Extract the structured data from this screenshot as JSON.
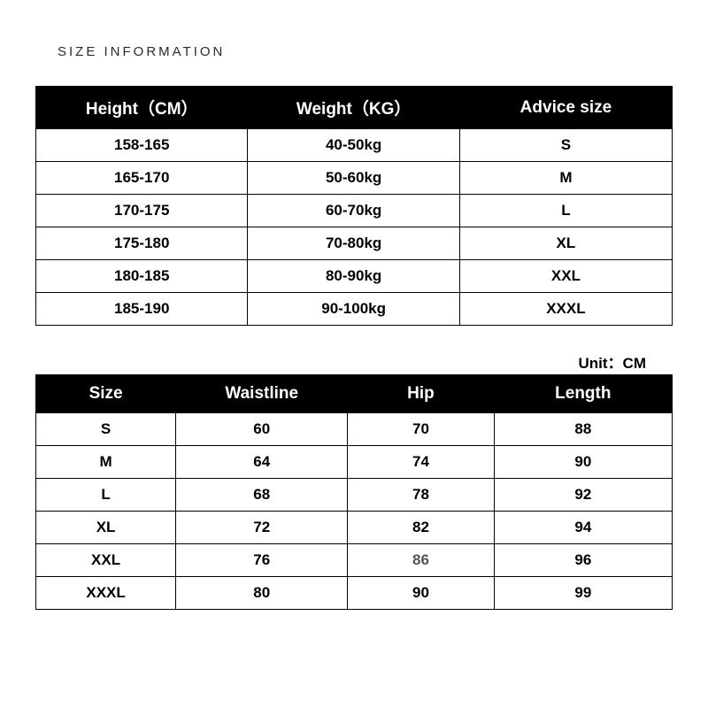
{
  "title": "SIZE INFORMATION",
  "table1": {
    "columns": [
      "Height（CM）",
      "Weight（KG）",
      "Advice size"
    ],
    "rows": [
      [
        "158-165",
        "40-50kg",
        "S"
      ],
      [
        "165-170",
        "50-60kg",
        "M"
      ],
      [
        "170-175",
        "60-70kg",
        "L"
      ],
      [
        "175-180",
        "70-80kg",
        "XL"
      ],
      [
        "180-185",
        "80-90kg",
        "XXL"
      ],
      [
        "185-190",
        "90-100kg",
        "XXXL"
      ]
    ],
    "header_bg": "#000000",
    "header_color": "#ffffff",
    "cell_color": "#000000",
    "border_color": "#000000",
    "font_weight": 700
  },
  "unit_label": "Unit：CM",
  "table2": {
    "columns": [
      "Size",
      "Waistline",
      "Hip",
      "Length"
    ],
    "rows": [
      [
        "S",
        "60",
        "70",
        "88"
      ],
      [
        "M",
        "64",
        "74",
        "90"
      ],
      [
        "L",
        "68",
        "78",
        "92"
      ],
      [
        "XL",
        "72",
        "82",
        "94"
      ],
      [
        "XXL",
        "76",
        "86",
        "96"
      ],
      [
        "XXXL",
        "80",
        "90",
        "99"
      ]
    ],
    "gray_cells": [
      [
        4,
        2
      ]
    ],
    "header_bg": "#000000",
    "header_color": "#ffffff",
    "cell_color": "#000000",
    "border_color": "#000000",
    "font_weight": 700
  }
}
